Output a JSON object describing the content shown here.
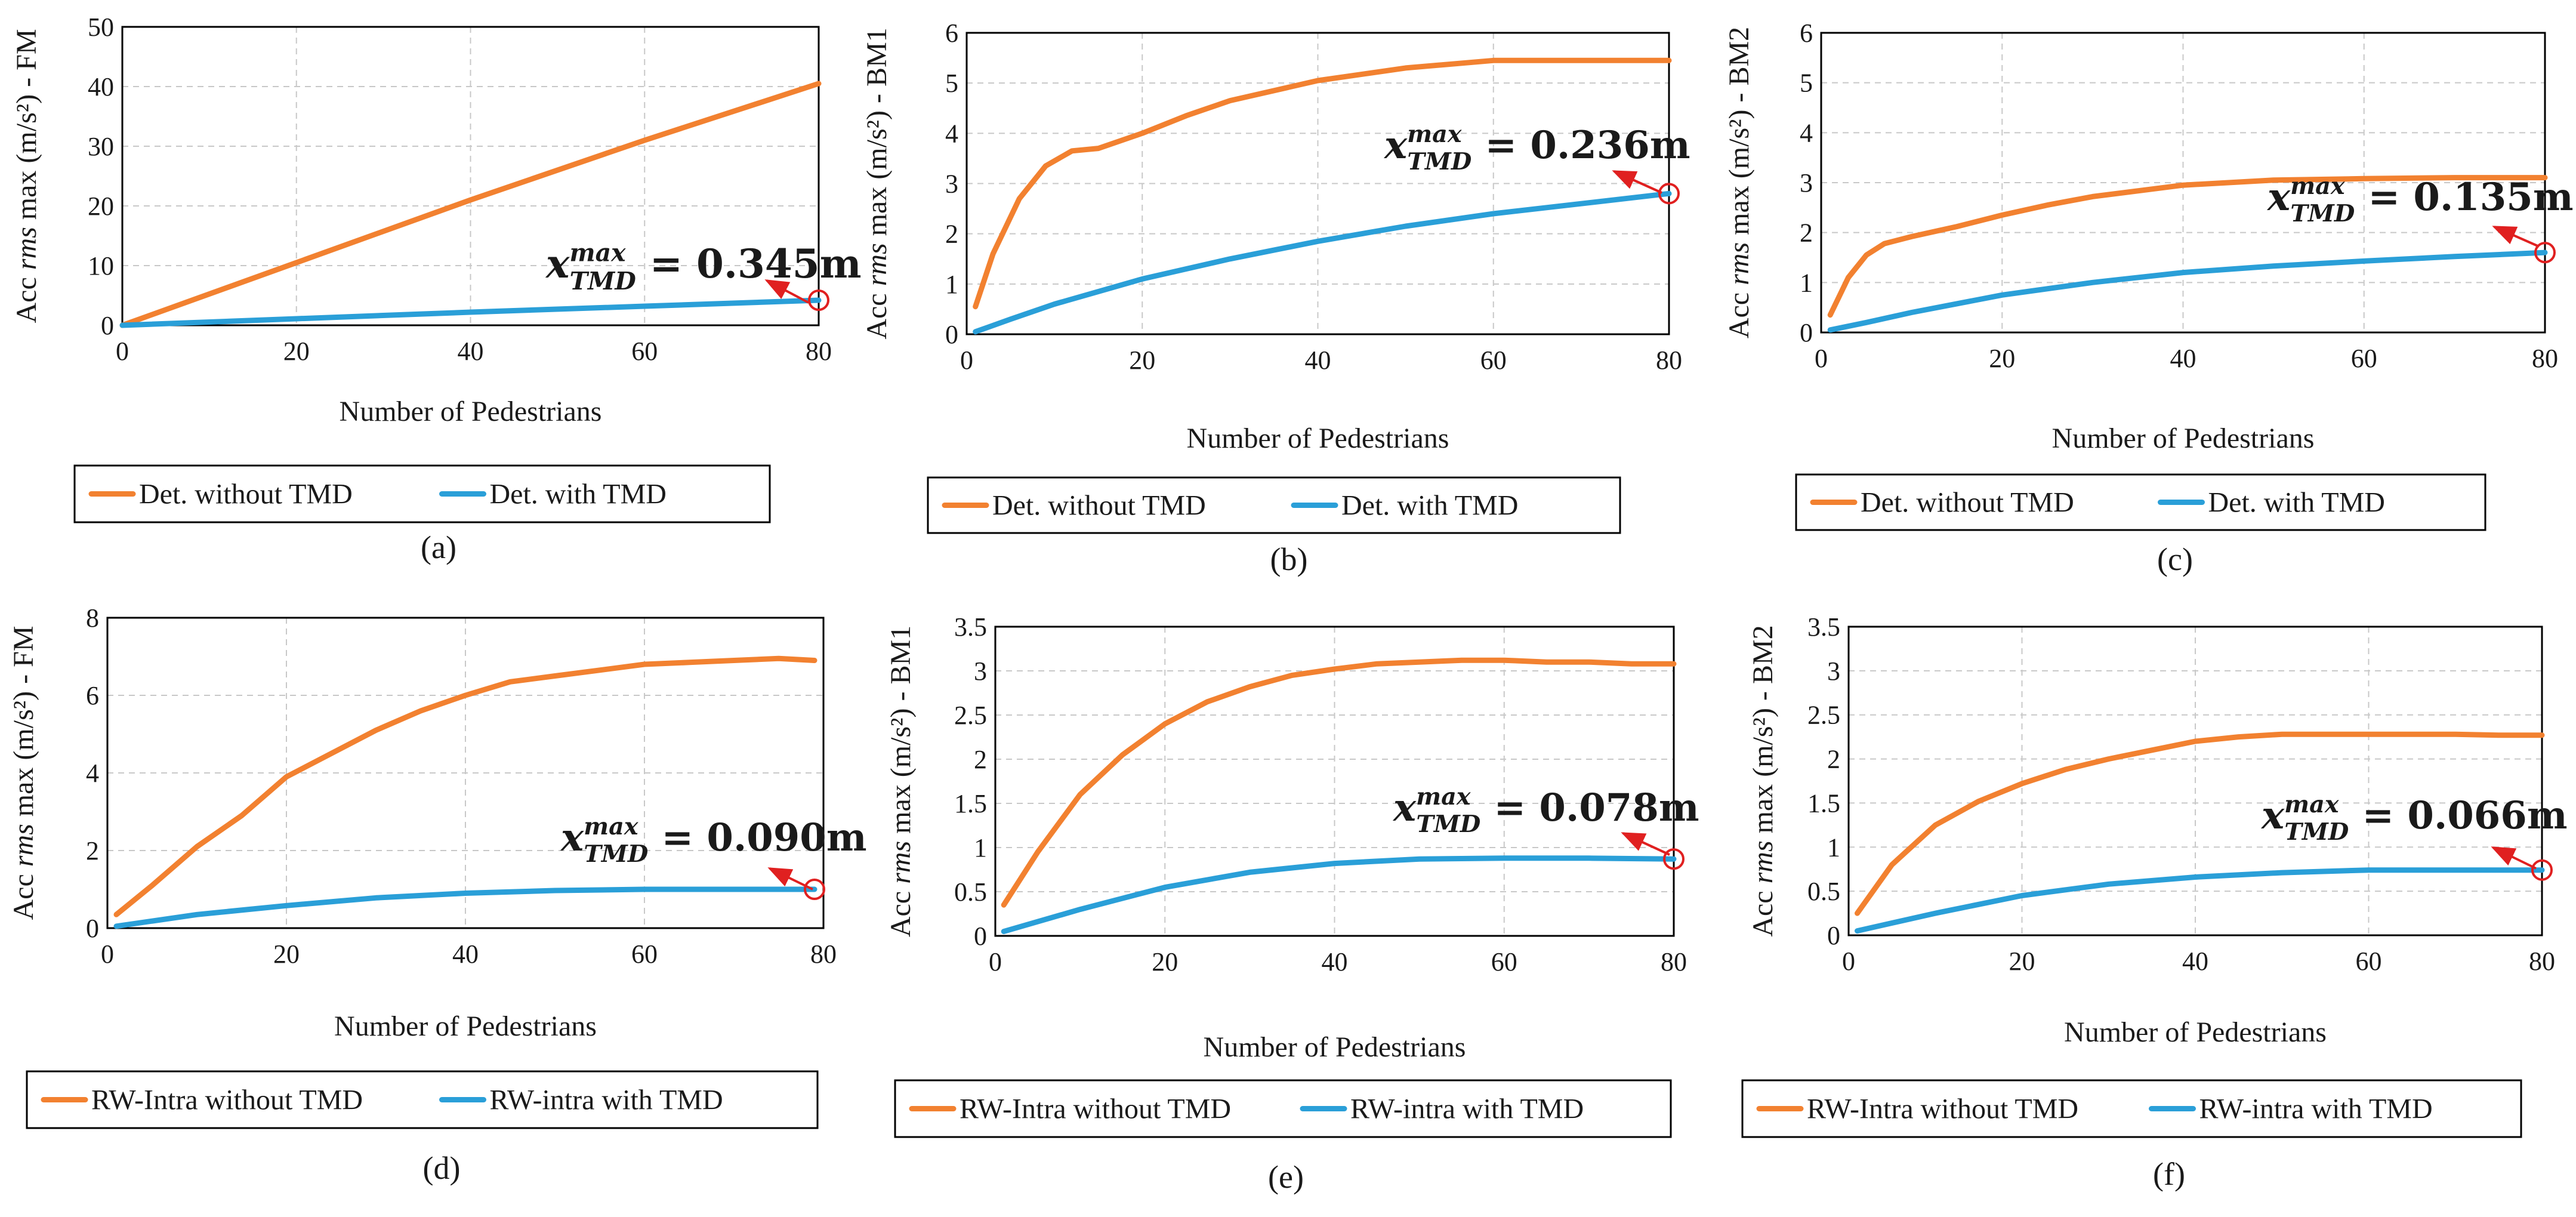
{
  "chart_data": [
    {
      "type": "line",
      "panel_label": "(a)",
      "xlabel": "Number of Pedestrians",
      "ylabel_prefix": "Acc",
      "ylabel_italic": "rms",
      "ylabel_suffix": " max (m/s²) - FM",
      "xlim": [
        0,
        80
      ],
      "ylim": [
        0,
        50
      ],
      "xticks": [
        "0",
        "20",
        "40",
        "60",
        "80"
      ],
      "yticks": [
        "0",
        "10",
        "20",
        "30",
        "40",
        "50"
      ],
      "grid": true,
      "legend_position": "bottom",
      "annotation": {
        "text": "x",
        "sup": "max",
        "sub": "TMD",
        "value": " = 0.345m"
      },
      "series": [
        {
          "name": "Det. without TMD",
          "color": "#f28130",
          "x": [
            0,
            20,
            40,
            60,
            80
          ],
          "y": [
            0,
            10.5,
            21,
            31,
            40.5
          ]
        },
        {
          "name": "Det. with TMD",
          "color": "#2a9fd8",
          "x": [
            0,
            20,
            40,
            60,
            80
          ],
          "y": [
            0,
            1.1,
            2.2,
            3.2,
            4.2
          ]
        }
      ]
    },
    {
      "type": "line",
      "panel_label": "(b)",
      "xlabel": "Number of Pedestrians",
      "ylabel_prefix": "Acc",
      "ylabel_italic": "rms",
      "ylabel_suffix": " max (m/s²) - BM1",
      "xlim": [
        0,
        80
      ],
      "ylim": [
        0,
        6
      ],
      "xticks": [
        "0",
        "20",
        "40",
        "60",
        "80"
      ],
      "yticks": [
        "0",
        "1",
        "2",
        "3",
        "4",
        "5",
        "6"
      ],
      "grid": true,
      "legend_position": "bottom",
      "annotation": {
        "text": "x",
        "sup": "max",
        "sub": "TMD",
        "value": " = 0.236m"
      },
      "series": [
        {
          "name": "Det. without TMD",
          "color": "#f28130",
          "x": [
            1,
            3,
            6,
            9,
            12,
            15,
            20,
            25,
            30,
            40,
            50,
            60,
            70,
            80
          ],
          "y": [
            0.55,
            1.6,
            2.7,
            3.35,
            3.65,
            3.7,
            4.0,
            4.35,
            4.65,
            5.05,
            5.3,
            5.45,
            5.45,
            5.45
          ]
        },
        {
          "name": "Det. with TMD",
          "color": "#2a9fd8",
          "x": [
            1,
            5,
            10,
            20,
            30,
            40,
            50,
            60,
            70,
            80
          ],
          "y": [
            0.05,
            0.3,
            0.6,
            1.1,
            1.5,
            1.85,
            2.15,
            2.4,
            2.6,
            2.8
          ]
        }
      ]
    },
    {
      "type": "line",
      "panel_label": "(c)",
      "xlabel": "Number of Pedestrians",
      "ylabel_prefix": "Acc",
      "ylabel_italic": "rms",
      "ylabel_suffix": " max (m/s²) - BM2",
      "xlim": [
        0,
        80
      ],
      "ylim": [
        0,
        6
      ],
      "xticks": [
        "0",
        "20",
        "40",
        "60",
        "80"
      ],
      "yticks": [
        "0",
        "1",
        "2",
        "3",
        "4",
        "5",
        "6"
      ],
      "grid": true,
      "legend_position": "bottom",
      "annotation": {
        "text": "x",
        "sup": "max",
        "sub": "TMD",
        "value": " = 0.135m"
      },
      "series": [
        {
          "name": "Det. without TMD",
          "color": "#f28130",
          "x": [
            1,
            3,
            5,
            7,
            10,
            15,
            20,
            25,
            30,
            40,
            50,
            60,
            70,
            80
          ],
          "y": [
            0.35,
            1.1,
            1.55,
            1.78,
            1.92,
            2.12,
            2.35,
            2.55,
            2.72,
            2.95,
            3.05,
            3.08,
            3.1,
            3.1
          ]
        },
        {
          "name": "Det. with TMD",
          "color": "#2a9fd8",
          "x": [
            1,
            5,
            10,
            20,
            30,
            40,
            50,
            60,
            70,
            80
          ],
          "y": [
            0.05,
            0.2,
            0.4,
            0.75,
            1.0,
            1.2,
            1.33,
            1.43,
            1.52,
            1.6
          ]
        }
      ]
    },
    {
      "type": "line",
      "panel_label": "(d)",
      "xlabel": "Number of Pedestrians",
      "ylabel_prefix": "Acc",
      "ylabel_italic": "rms",
      "ylabel_suffix": " max (m/s²) - FM",
      "xlim": [
        0,
        80
      ],
      "ylim": [
        0,
        8
      ],
      "xticks": [
        "0",
        "20",
        "40",
        "60",
        "80"
      ],
      "yticks": [
        "0",
        "2",
        "4",
        "6",
        "8"
      ],
      "grid": true,
      "legend_position": "bottom",
      "annotation": {
        "text": "x",
        "sup": "max",
        "sub": "TMD",
        "value": " = 0.090m"
      },
      "series": [
        {
          "name": "RW-Intra without TMD",
          "color": "#f28130",
          "x": [
            1,
            5,
            10,
            15,
            20,
            25,
            30,
            35,
            40,
            45,
            50,
            55,
            60,
            65,
            70,
            75,
            79
          ],
          "y": [
            0.35,
            1.1,
            2.1,
            2.9,
            3.9,
            4.5,
            5.1,
            5.6,
            6.0,
            6.35,
            6.5,
            6.65,
            6.8,
            6.85,
            6.9,
            6.95,
            6.9
          ]
        },
        {
          "name": "RW-intra with TMD",
          "color": "#2a9fd8",
          "x": [
            1,
            10,
            20,
            30,
            40,
            50,
            60,
            70,
            79
          ],
          "y": [
            0.05,
            0.35,
            0.58,
            0.78,
            0.9,
            0.97,
            1.0,
            1.0,
            1.0
          ]
        }
      ]
    },
    {
      "type": "line",
      "panel_label": "(e)",
      "xlabel": "Number of Pedestrians",
      "ylabel_prefix": "Acc",
      "ylabel_italic": "rms",
      "ylabel_suffix": " max (m/s²) - BM1",
      "xlim": [
        0,
        80
      ],
      "ylim": [
        0,
        3.5
      ],
      "xticks": [
        "0",
        "20",
        "40",
        "60",
        "80"
      ],
      "yticks": [
        "0",
        "0.5",
        "1",
        "1.5",
        "2",
        "2.5",
        "3",
        "3.5"
      ],
      "grid": true,
      "legend_position": "bottom",
      "annotation": {
        "text": "x",
        "sup": "max",
        "sub": "TMD",
        "value": " = 0.078m"
      },
      "series": [
        {
          "name": "RW-Intra without TMD",
          "color": "#f28130",
          "x": [
            1,
            5,
            10,
            15,
            20,
            25,
            30,
            35,
            40,
            45,
            50,
            55,
            60,
            65,
            70,
            75,
            80
          ],
          "y": [
            0.35,
            0.95,
            1.6,
            2.05,
            2.4,
            2.65,
            2.82,
            2.95,
            3.02,
            3.08,
            3.1,
            3.12,
            3.12,
            3.1,
            3.1,
            3.08,
            3.08
          ]
        },
        {
          "name": "RW-intra with TMD",
          "color": "#2a9fd8",
          "x": [
            1,
            10,
            20,
            30,
            40,
            50,
            60,
            70,
            80
          ],
          "y": [
            0.05,
            0.3,
            0.55,
            0.72,
            0.82,
            0.87,
            0.88,
            0.88,
            0.87
          ]
        }
      ]
    },
    {
      "type": "line",
      "panel_label": "(f)",
      "xlabel": "Number of Pedestrians",
      "ylabel_prefix": "Acc",
      "ylabel_italic": "rms",
      "ylabel_suffix": " max (m/s²) - BM2",
      "xlim": [
        0,
        80
      ],
      "ylim": [
        0,
        3.5
      ],
      "xticks": [
        "0",
        "20",
        "40",
        "60",
        "80"
      ],
      "yticks": [
        "0",
        "0.5",
        "1",
        "1.5",
        "2",
        "2.5",
        "3",
        "3.5"
      ],
      "grid": true,
      "legend_position": "bottom",
      "annotation": {
        "text": "x",
        "sup": "max",
        "sub": "TMD",
        "value": " = 0.066m"
      },
      "series": [
        {
          "name": "RW-Intra without TMD",
          "color": "#f28130",
          "x": [
            1,
            5,
            10,
            15,
            20,
            25,
            30,
            35,
            40,
            45,
            50,
            55,
            60,
            65,
            70,
            75,
            80
          ],
          "y": [
            0.25,
            0.8,
            1.25,
            1.52,
            1.72,
            1.88,
            2.0,
            2.1,
            2.2,
            2.25,
            2.28,
            2.28,
            2.28,
            2.28,
            2.28,
            2.27,
            2.27
          ]
        },
        {
          "name": "RW-intra with TMD",
          "color": "#2a9fd8",
          "x": [
            1,
            10,
            20,
            30,
            40,
            50,
            60,
            70,
            80
          ],
          "y": [
            0.05,
            0.25,
            0.45,
            0.58,
            0.66,
            0.71,
            0.74,
            0.74,
            0.74
          ]
        }
      ]
    }
  ]
}
